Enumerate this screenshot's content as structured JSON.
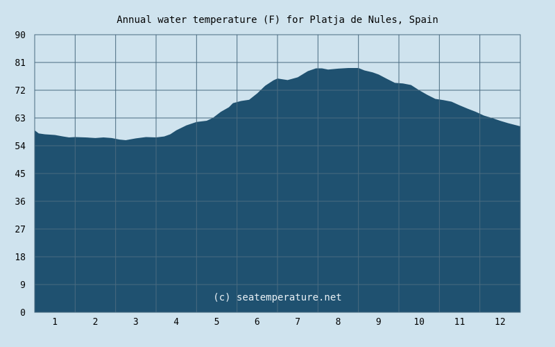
{
  "chart_data": {
    "type": "area",
    "title": "Annual water temperature (F) for Platja de Nules, Spain",
    "xlabel": "",
    "ylabel": "",
    "x_ticks": [
      "1",
      "2",
      "3",
      "4",
      "5",
      "6",
      "7",
      "8",
      "9",
      "10",
      "11",
      "12"
    ],
    "y_ticks": [
      "0",
      "9",
      "18",
      "27",
      "36",
      "45",
      "54",
      "63",
      "72",
      "81",
      "90"
    ],
    "xlim": [
      0.5,
      12.5
    ],
    "ylim": [
      0,
      90
    ],
    "grid": true,
    "watermark": "(c) seatemperature.net",
    "colors": {
      "background": "#cfe3ee",
      "plot_background": "#cfe3ee",
      "area_fill": "#1f5170",
      "grid": "#4a6b80",
      "text": "#000000",
      "watermark": "#e8f0f5"
    },
    "series": [
      {
        "x": [
          0.5,
          0.6,
          0.75,
          1.0,
          1.2,
          1.35,
          1.5,
          1.75,
          2.0,
          2.2,
          2.4,
          2.6,
          2.75,
          3.0,
          3.25,
          3.5,
          3.7,
          3.85,
          4.0,
          4.25,
          4.5,
          4.75,
          4.9,
          5.1,
          5.3,
          5.4,
          5.6,
          5.8,
          6.0,
          6.2,
          6.4,
          6.5,
          6.75,
          7.0,
          7.25,
          7.45,
          7.6,
          7.75,
          8.0,
          8.25,
          8.5,
          8.65,
          8.85,
          9.0,
          9.2,
          9.4,
          9.6,
          9.8,
          10.0,
          10.2,
          10.4,
          10.6,
          10.8,
          11.0,
          11.2,
          11.4,
          11.6,
          11.8,
          12.0,
          12.2,
          12.5
        ],
        "y": [
          59,
          58,
          57.7,
          57.5,
          57,
          56.7,
          56.8,
          56.7,
          56.5,
          56.7,
          56.5,
          56,
          55.8,
          56.4,
          56.8,
          56.7,
          57,
          57.7,
          59,
          60.6,
          61.7,
          62.1,
          63,
          65,
          66.5,
          67.8,
          68.5,
          68.9,
          71,
          73.5,
          75.2,
          75.8,
          75.3,
          76.2,
          78.2,
          79.1,
          79.1,
          78.7,
          79,
          79.2,
          79.2,
          78.4,
          77.8,
          77.1,
          75.7,
          74.4,
          74.2,
          73.7,
          72,
          70.5,
          69.2,
          68.8,
          68.3,
          67.1,
          66,
          65,
          63.8,
          63,
          62.1,
          61.3,
          60.3
        ]
      }
    ]
  }
}
